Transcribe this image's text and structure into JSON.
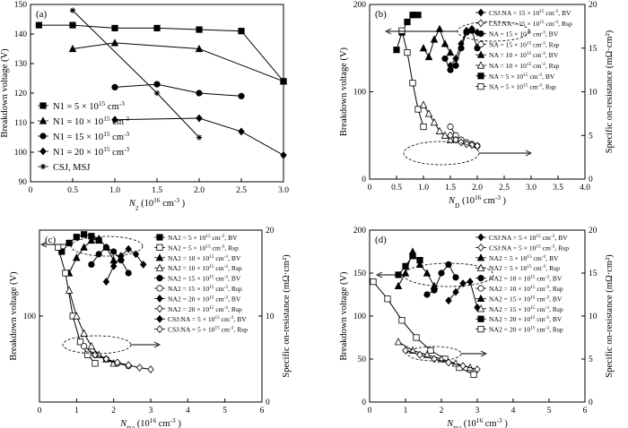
{
  "chart_data": [
    {
      "panel": "(a)",
      "type": "line",
      "xlabel": "N2 (10^16 cm^-3)",
      "ylabel": "Breakdown voltage (V)",
      "xlim": [
        0,
        3.0
      ],
      "ylim": [
        90,
        150
      ],
      "xticks": [
        "0",
        "0.5",
        "1.0",
        "1.5",
        "2.0",
        "2.5",
        "3.0"
      ],
      "yticks": [
        "90",
        "100",
        "110",
        "120",
        "130",
        "140",
        "150"
      ],
      "legend_entries": [
        "N1 = 5 × 10^15 cm^-3",
        "N1 = 10 × 10^15 cm^-3",
        "N1 = 15 × 10^15 cm^-3",
        "N1 = 20 × 10^15 cm^-3",
        "CSJ, MSJ"
      ],
      "series": [
        {
          "marker": "square",
          "x": [
            0.1,
            0.5,
            1.0,
            1.5,
            2.0,
            2.5,
            3.0
          ],
          "y": [
            143,
            143,
            142,
            142,
            141.5,
            141,
            124
          ]
        },
        {
          "marker": "triangle",
          "x": [
            0.5,
            1.0,
            2.0,
            3.0
          ],
          "y": [
            135,
            137,
            135,
            124
          ]
        },
        {
          "marker": "circle",
          "x": [
            1.0,
            1.5,
            2.0,
            2.5
          ],
          "y": [
            122,
            123,
            120,
            119
          ]
        },
        {
          "marker": "diamond",
          "x": [
            1.0,
            2.0,
            2.5,
            3.0
          ],
          "y": [
            111,
            111.5,
            107,
            99
          ]
        },
        {
          "marker": "star",
          "x": [
            0.5,
            1.5,
            2.0
          ],
          "y": [
            148,
            120,
            105
          ]
        }
      ]
    },
    {
      "panel": "(b)",
      "type": "line",
      "xlabel": "ND (10^16 cm^-3)",
      "ylabel": "Breakdown voltage (V)",
      "y2label": "Specific on-resistance (mΩ·cm²)",
      "xlim": [
        0,
        4.0
      ],
      "ylim": [
        0,
        200
      ],
      "y2lim": [
        0,
        20
      ],
      "xticks": [
        "0",
        "0.5",
        "1.0",
        "1.5",
        "2.0",
        "2.5",
        "3.0",
        "3.5",
        "4.0"
      ],
      "yticks": [
        "0",
        "100",
        "200"
      ],
      "y2ticks": [
        "0",
        "5",
        "10",
        "15",
        "20"
      ],
      "legend_entries": [
        "CSJ:NA = 15 × 10^15 cm^-3, BV",
        "CSJ:NA = 15 × 10^15 cm^-3, Rsp",
        "NA = 15 × 10^15 cm^-3, BV",
        "NA = 15 × 10^15 cm^-3, Rsp",
        "NA = 10 × 10^15 cm^-3, BV",
        "NA = 10 × 10^15 cm^-3, Rsp",
        "NA = 5 × 10^15 cm^-3, BV",
        "NA = 5 × 10^15 cm^-3, Rsp"
      ],
      "series": [
        {
          "axis": "left",
          "marker": "square",
          "x": [
            0.5,
            0.6,
            0.7,
            0.8,
            0.9
          ],
          "y": [
            148,
            168,
            180,
            188,
            188
          ]
        },
        {
          "axis": "left",
          "marker": "triangle",
          "x": [
            1.0,
            1.1,
            1.2,
            1.3,
            1.4,
            1.5
          ],
          "y": [
            150,
            140,
            160,
            172,
            155,
            145
          ]
        },
        {
          "axis": "left",
          "marker": "circle",
          "x": [
            1.4,
            1.5,
            1.6,
            1.7,
            1.8,
            1.9,
            2.0
          ],
          "y": [
            138,
            125,
            130,
            150,
            168,
            170,
            150
          ]
        },
        {
          "axis": "left",
          "marker": "diamond",
          "x": [
            1.5,
            1.6,
            1.7,
            1.8,
            1.9,
            2.0
          ],
          "y": [
            130,
            138,
            155,
            170,
            172,
            168
          ]
        },
        {
          "axis": "right",
          "marker": "square-open",
          "x": [
            0.6,
            0.7,
            0.8,
            0.9,
            1.0
          ],
          "y": [
            17,
            14.5,
            11,
            8,
            6
          ]
        },
        {
          "axis": "right",
          "marker": "triangle-open",
          "x": [
            1.0,
            1.1,
            1.2,
            1.3,
            1.4,
            1.5
          ],
          "y": [
            8.5,
            7.5,
            6.5,
            5.5,
            5,
            4.5
          ]
        },
        {
          "axis": "right",
          "marker": "circle-open",
          "x": [
            1.5,
            1.6,
            1.7,
            1.8,
            1.9,
            2.0
          ],
          "y": [
            6,
            5,
            4.5,
            4.2,
            4,
            3.8
          ]
        },
        {
          "axis": "right",
          "marker": "diamond-open",
          "x": [
            1.5,
            1.6,
            1.7,
            1.8,
            1.9,
            2.0
          ],
          "y": [
            5,
            4.5,
            4.2,
            4,
            3.9,
            3.8
          ]
        }
      ]
    },
    {
      "panel": "(c)",
      "type": "line",
      "xlabel": "ND2 (10^16 cm^-3)",
      "ylabel": "Breakdown voltage (V)",
      "y2label": "Specific on-resistance (mΩ·cm²)",
      "xlim": [
        0,
        6
      ],
      "ylim": [
        0,
        200
      ],
      "y2lim": [
        0,
        20
      ],
      "xticks": [
        "0",
        "1",
        "2",
        "3",
        "4",
        "5",
        "6"
      ],
      "yticks": [
        "100"
      ],
      "y2ticks": [
        "0",
        "10",
        "20"
      ],
      "legend_entries": [
        "NA2 = 5 × 10^15 cm^-3, BV",
        "NA2 = 5 × 10^15 cm^-3, Rsp",
        "NA2 = 10 × 10^15 cm^-3, BV",
        "NA2 = 10 × 10^15 cm^-3, Rsp",
        "NA2 = 15 × 10^15 cm^-3, BV",
        "NA2 = 15 × 10^15 cm^-3, Rsp",
        "NA2 = 20 × 10^15 cm^-3, BV",
        "NA2 = 20 × 10^15 cm^-3, Rsp",
        "CSJ:NA = 5 × 10^15 cm^-3, BV",
        "CSJ:NA = 5 × 10^15 cm^-3, Rsp"
      ],
      "series": [
        {
          "axis": "left",
          "marker": "square",
          "x": [
            0.6,
            0.8,
            1.0,
            1.2,
            1.4,
            1.6
          ],
          "y": [
            175,
            185,
            192,
            195,
            193,
            188
          ]
        },
        {
          "axis": "left",
          "marker": "triangle",
          "x": [
            0.8,
            1.0,
            1.2,
            1.4,
            1.6,
            1.8,
            2.0
          ],
          "y": [
            150,
            168,
            180,
            188,
            190,
            180,
            165
          ]
        },
        {
          "axis": "left",
          "marker": "circle",
          "x": [
            1.4,
            1.6,
            1.8,
            2.0,
            2.2,
            2.4
          ],
          "y": [
            160,
            172,
            180,
            175,
            165,
            150
          ]
        },
        {
          "axis": "left",
          "marker": "diamond",
          "x": [
            1.8,
            2.0,
            2.2,
            2.4,
            2.6,
            2.8
          ],
          "y": [
            140,
            158,
            170,
            178,
            172,
            160
          ]
        },
        {
          "axis": "right",
          "marker": "square-open",
          "x": [
            0.5,
            0.7,
            0.9,
            1.1,
            1.3,
            1.5
          ],
          "y": [
            18,
            15,
            10,
            7,
            5.5,
            4.5
          ]
        },
        {
          "axis": "right",
          "marker": "triangle-open",
          "x": [
            0.8,
            1.0,
            1.2,
            1.4,
            1.6,
            1.8,
            2.0
          ],
          "y": [
            13,
            10,
            8,
            6.5,
            5.5,
            5,
            4.5
          ]
        },
        {
          "axis": "right",
          "marker": "circle-open",
          "x": [
            1.2,
            1.5,
            1.8,
            2.1,
            2.4
          ],
          "y": [
            6.5,
            5.5,
            5,
            4.5,
            4.2
          ]
        },
        {
          "axis": "right",
          "marker": "diamond-open",
          "x": [
            1.5,
            1.8,
            2.1,
            2.4,
            2.7,
            3.0
          ],
          "y": [
            5.5,
            5,
            4.6,
            4.3,
            4,
            3.8
          ]
        }
      ]
    },
    {
      "panel": "(d)",
      "type": "line",
      "xlabel": "ND2 (10^16 cm^-3)",
      "ylabel": "Breakdown voltage (V)",
      "y2label": "Specific on-resistance (mΩ·cm²)",
      "xlim": [
        0,
        6
      ],
      "ylim": [
        0,
        200
      ],
      "y2lim": [
        0,
        20
      ],
      "xticks": [
        "0",
        "1",
        "2",
        "3",
        "4",
        "5",
        "6"
      ],
      "yticks": [
        "0",
        "50",
        "100",
        "150",
        "200"
      ],
      "y2ticks": [
        "0",
        "5",
        "10",
        "15",
        "20"
      ],
      "legend_entries": [
        "CSJ:NA = 5 × 10^15 cm^-3, BV",
        "CSJ:NA = 5 × 10^15 cm^-3, Rsp",
        "NA2 = 5 × 10^15 cm^-3, BV",
        "NA2 = 5 × 10^15 cm^-3, Rsp",
        "NA2 = 10 × 10^15 cm^-3, BV",
        "NA2 = 10 × 10^15 cm^-3, Rsp",
        "NA2 = 15 × 10^15 cm^-3, BV",
        "NA2 = 15 × 10^15 cm^-3, Rsp",
        "NA2 = 20 × 10^15 cm^-3, BV",
        "NA2 = 20 × 10^15 cm^-3, Rsp"
      ],
      "series": [
        {
          "axis": "left",
          "marker": "triangle",
          "x": [
            0.8,
            1.0,
            1.2,
            1.4,
            1.6,
            1.8
          ],
          "y": [
            135,
            150,
            175,
            160,
            150,
            135
          ]
        },
        {
          "axis": "left",
          "marker": "square",
          "x": [
            0.8,
            1.0,
            1.2,
            1.4
          ],
          "y": [
            148,
            158,
            170,
            165
          ]
        },
        {
          "axis": "left",
          "marker": "circle",
          "x": [
            1.6,
            1.8,
            2.0,
            2.2,
            2.4
          ],
          "y": [
            125,
            130,
            150,
            160,
            145
          ]
        },
        {
          "axis": "left",
          "marker": "diamond",
          "x": [
            2.2,
            2.4,
            2.6,
            2.8,
            3.0
          ],
          "y": [
            118,
            128,
            138,
            140,
            110
          ]
        },
        {
          "axis": "right",
          "marker": "square-open",
          "x": [
            0.1,
            0.5,
            0.9,
            1.3,
            1.7,
            2.1,
            2.5,
            2.9
          ],
          "y": [
            14,
            12,
            9.5,
            7.5,
            6,
            5,
            4,
            3.2
          ]
        },
        {
          "axis": "right",
          "marker": "triangle-open",
          "x": [
            0.8,
            1.2,
            1.6,
            2.0,
            2.4,
            2.8
          ],
          "y": [
            7,
            6,
            5.5,
            5,
            4.5,
            4
          ]
        },
        {
          "axis": "right",
          "marker": "diamond-open",
          "x": [
            1.0,
            1.4,
            1.8,
            2.2,
            2.6,
            3.0
          ],
          "y": [
            6,
            5.5,
            5,
            4.6,
            4.2,
            3.8
          ]
        }
      ]
    }
  ]
}
